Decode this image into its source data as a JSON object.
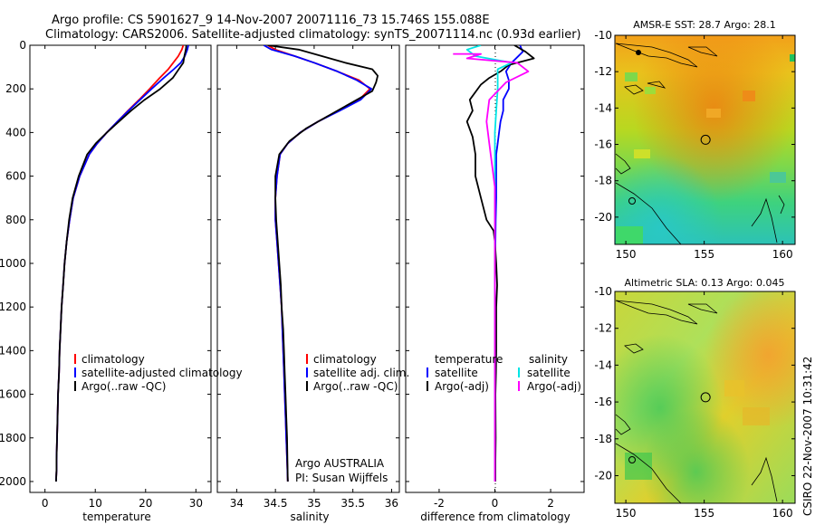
{
  "header": {
    "title_line1": "Argo profile: CS 5901627_9 14-Nov-2007 20071116_73 15.746S 155.088E",
    "title_line2": "Climatology: CARS2006. Satellite-adjusted climatology: synTS_20071114.nc (0.93d earlier)"
  },
  "colors": {
    "climatology": "#ff0000",
    "satellite": "#0000ff",
    "argo": "#000000",
    "salinity_satellite": "#00e5e5",
    "salinity_argo": "#ff00ff"
  },
  "chart_data": [
    {
      "type": "line",
      "id": "temperature",
      "xlabel": "temperature",
      "ylabel": "",
      "xlim": [
        -3,
        33
      ],
      "ylim": [
        2050,
        0
      ],
      "xticks": [
        "0",
        "10",
        "20",
        "30"
      ],
      "yticks": [
        "0",
        "200",
        "400",
        "600",
        "800",
        "1000",
        "1200",
        "1400",
        "1600",
        "1800",
        "2000"
      ],
      "legend": {
        "position": "lower-right",
        "entries": [
          "climatology",
          "satellite-adjusted climatology",
          "Argo(..raw -QC)"
        ]
      },
      "series": [
        {
          "name": "climatology",
          "color": "#ff0000",
          "x": [
            27.5,
            27.2,
            26.5,
            25.5,
            24.5,
            22.8,
            20.8,
            18.7,
            16.5,
            14.4,
            12.3,
            10.4,
            8.8,
            6.9,
            5.6,
            4.9,
            4.3,
            3.9,
            3.6,
            3.3,
            3.1,
            2.9,
            2.8,
            2.6,
            2.5,
            2.4,
            2.3,
            2.3,
            2.2
          ],
          "y": [
            0,
            20,
            50,
            80,
            110,
            150,
            200,
            250,
            300,
            350,
            400,
            450,
            500,
            600,
            700,
            800,
            900,
            1000,
            1100,
            1200,
            1300,
            1400,
            1500,
            1600,
            1700,
            1800,
            1900,
            1950,
            2000
          ]
        },
        {
          "name": "satellite-adjusted climatology",
          "color": "#0000ff",
          "x": [
            28.5,
            28.3,
            27.8,
            27.0,
            25.6,
            23.6,
            21.2,
            18.9,
            16.6,
            14.4,
            12.3,
            10.4,
            8.8,
            6.9,
            5.6,
            4.9,
            4.3,
            3.9,
            3.6,
            3.3,
            3.1,
            2.9,
            2.8,
            2.6,
            2.5,
            2.4,
            2.3,
            2.3,
            2.2
          ],
          "y": [
            0,
            20,
            50,
            80,
            110,
            150,
            200,
            250,
            300,
            350,
            400,
            450,
            500,
            600,
            700,
            800,
            900,
            1000,
            1100,
            1200,
            1300,
            1400,
            1500,
            1600,
            1700,
            1800,
            1900,
            1950,
            2000
          ]
        },
        {
          "name": "Argo(..raw -QC)",
          "color": "#000000",
          "x": [
            28.1,
            28.0,
            27.7,
            27.5,
            26.6,
            25.4,
            22.9,
            19.8,
            17.1,
            14.7,
            12.3,
            10.1,
            8.4,
            6.7,
            5.5,
            4.8,
            4.3,
            3.9,
            3.6,
            3.3,
            3.1,
            2.9,
            2.8,
            2.6,
            2.5,
            2.4,
            2.3,
            2.3,
            2.2
          ],
          "y": [
            0,
            20,
            50,
            80,
            110,
            150,
            200,
            250,
            300,
            350,
            400,
            450,
            500,
            600,
            700,
            800,
            900,
            1000,
            1100,
            1200,
            1300,
            1400,
            1500,
            1600,
            1700,
            1800,
            1900,
            1950,
            2000
          ]
        }
      ]
    },
    {
      "type": "line",
      "id": "salinity",
      "xlabel": "salinity",
      "ylabel": "",
      "xlim": [
        33.75,
        36.1
      ],
      "ylim": [
        2050,
        0
      ],
      "xticks": [
        "34",
        "34.5",
        "35",
        "35.5",
        "36"
      ],
      "legend": {
        "position": "lower-right",
        "entries": [
          "climatology",
          "satellite adj. clim.",
          "Argo(..raw -QC)"
        ]
      },
      "annotation": [
        "Argo AUSTRALIA",
        "PI: Susan Wijffels"
      ],
      "series": [
        {
          "name": "climatology",
          "color": "#ff0000",
          "x": [
            34.4,
            34.5,
            34.75,
            35.0,
            35.3,
            35.58,
            35.72,
            35.58,
            35.32,
            35.05,
            34.82,
            34.66,
            34.56,
            34.52,
            34.5,
            34.5,
            34.52,
            34.54,
            34.56,
            34.58,
            34.59,
            34.6,
            34.61,
            34.62,
            34.63,
            34.64,
            34.65,
            34.66
          ],
          "y": [
            0,
            20,
            50,
            80,
            120,
            160,
            200,
            250,
            300,
            350,
            400,
            450,
            500,
            600,
            700,
            800,
            900,
            1000,
            1100,
            1200,
            1300,
            1400,
            1500,
            1600,
            1700,
            1800,
            1900,
            2000
          ]
        },
        {
          "name": "satellite adj. clim.",
          "color": "#0000ff",
          "x": [
            34.35,
            34.45,
            34.75,
            35.0,
            35.3,
            35.55,
            35.74,
            35.6,
            35.33,
            35.05,
            34.82,
            34.66,
            34.56,
            34.52,
            34.5,
            34.5,
            34.52,
            34.54,
            34.56,
            34.58,
            34.59,
            34.6,
            34.61,
            34.62,
            34.63,
            34.64,
            34.65,
            34.66
          ],
          "y": [
            0,
            20,
            50,
            80,
            120,
            160,
            200,
            250,
            300,
            350,
            400,
            450,
            500,
            600,
            700,
            800,
            900,
            1000,
            1100,
            1200,
            1300,
            1400,
            1500,
            1600,
            1700,
            1800,
            1900,
            2000
          ]
        },
        {
          "name": "Argo(..raw -QC)",
          "color": "#000000",
          "x": [
            34.4,
            34.8,
            35.1,
            35.4,
            35.75,
            35.82,
            35.8,
            35.75,
            35.5,
            35.2,
            34.9,
            34.68,
            34.55,
            34.5,
            34.5,
            34.51,
            34.53,
            34.55,
            34.57,
            34.58,
            34.6,
            34.61,
            34.62,
            34.63,
            34.64,
            34.65,
            34.66
          ],
          "y": [
            0,
            20,
            50,
            80,
            110,
            140,
            170,
            210,
            260,
            320,
            380,
            440,
            500,
            600,
            700,
            800,
            900,
            1000,
            1100,
            1200,
            1300,
            1400,
            1500,
            1600,
            1700,
            1800,
            2000
          ]
        }
      ]
    },
    {
      "type": "line",
      "id": "difference",
      "xlabel": "difference from climatology",
      "ylabel": "",
      "xlim": [
        -3.2,
        3.2
      ],
      "ylim": [
        2050,
        0
      ],
      "xticks": [
        "-2",
        "0",
        "2"
      ],
      "legend": {
        "position": "lower",
        "temperature_header": "temperature",
        "salinity_header": "salinity",
        "temperature_entries": [
          "satellite",
          "Argo(-adj)"
        ],
        "salinity_entries": [
          "satellite",
          "Argo(-adj)"
        ]
      },
      "series": [
        {
          "name": "satellite",
          "group": "temperature",
          "color": "#0000ff",
          "x": [
            0.9,
            1.0,
            0.6,
            0.4,
            0.5,
            0.5,
            0.3,
            0.3,
            0.2,
            0.15,
            0.1,
            0.05,
            0.05,
            0.05,
            0.03,
            0.02,
            0.0,
            0.0,
            0.0,
            0.0,
            0.0,
            0.0,
            0.0
          ],
          "y": [
            0,
            30,
            80,
            120,
            160,
            200,
            250,
            300,
            350,
            400,
            450,
            500,
            600,
            700,
            800,
            900,
            1000,
            1200,
            1400,
            1600,
            1800,
            1900,
            2000
          ]
        },
        {
          "name": "Argo(-adj)",
          "group": "temperature",
          "color": "#000000",
          "x": [
            0.7,
            1.1,
            1.4,
            0.5,
            0.2,
            -0.2,
            -0.5,
            -0.9,
            -0.8,
            -1.0,
            -0.8,
            -0.7,
            -0.7,
            -0.5,
            -0.3,
            -0.05,
            0.0,
            0.05,
            0.08,
            0.05,
            0.05,
            0.04,
            0.02,
            0.03,
            0.02,
            0.02
          ],
          "y": [
            0,
            30,
            60,
            90,
            120,
            150,
            180,
            250,
            300,
            350,
            420,
            500,
            600,
            700,
            800,
            850,
            900,
            1000,
            1100,
            1200,
            1400,
            1500,
            1600,
            1800,
            1900,
            2000
          ]
        },
        {
          "name": "satellite",
          "group": "salinity",
          "color": "#00e5e5",
          "x": [
            -0.5,
            -1.0,
            -0.7,
            0.6,
            0.1,
            0.1,
            0.05,
            0.0,
            0.0,
            0.0,
            0.0,
            0.0,
            0.0,
            0.0,
            0.0,
            0.0
          ],
          "y": [
            0,
            20,
            50,
            80,
            110,
            200,
            300,
            400,
            500,
            700,
            900,
            1100,
            1300,
            1500,
            1700,
            2000
          ]
        },
        {
          "name": "Argo(-adj)",
          "group": "salinity",
          "color": "#ff00ff",
          "x": [
            -1.5,
            -0.5,
            -1.0,
            0.8,
            1.2,
            0.4,
            -0.2,
            -0.3,
            -0.2,
            -0.1,
            0.0,
            0.0,
            0.0,
            0.0
          ],
          "y": [
            40,
            40,
            60,
            80,
            120,
            170,
            250,
            350,
            450,
            550,
            650,
            800,
            1000,
            2000
          ]
        }
      ]
    },
    {
      "type": "heatmap",
      "id": "sst_map",
      "title": "AMSR-E SST: 28.7 Argo: 28.1",
      "xlim": [
        149.3,
        160.8
      ],
      "ylim": [
        -21.5,
        -10
      ],
      "xticks": [
        "150",
        "155",
        "160"
      ],
      "yticks": [
        "-10",
        "-12",
        "-14",
        "-16",
        "-18",
        "-20"
      ],
      "marker": {
        "lon": 155.088,
        "lat": -15.746
      }
    },
    {
      "type": "heatmap",
      "id": "sla_map",
      "title": "Altimetric SLA: 0.13 Argo: 0.045",
      "xlim": [
        149.3,
        160.8
      ],
      "ylim": [
        -21.5,
        -10
      ],
      "xticks": [
        "150",
        "155",
        "160"
      ],
      "yticks": [
        "-10",
        "-12",
        "-14",
        "-16",
        "-18",
        "-20"
      ],
      "marker": {
        "lon": 155.088,
        "lat": -15.746
      }
    }
  ],
  "footer": {
    "credit": "CSIRO 22-Nov-2007 10:31:42"
  }
}
